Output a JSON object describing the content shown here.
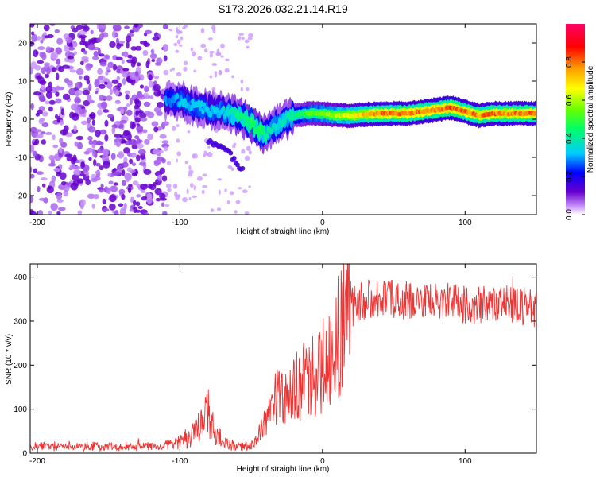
{
  "title": "S173.2026.032.21.14.R19",
  "colors": {
    "noise": "#8a2be2",
    "signal_line": "#ee3333",
    "colorbar": [
      "#cc99ff",
      "#6600cc",
      "#0000ff",
      "#00ccff",
      "#00ff66",
      "#66ff00",
      "#ffff00",
      "#ff9900",
      "#ff0000",
      "#ff0066"
    ]
  },
  "chart_data": [
    {
      "type": "heatmap",
      "name": "spectrogram",
      "xlabel": "Height of straight line (km)",
      "ylabel": "Frequency (Hz)",
      "xlim": [
        -205,
        150
      ],
      "ylim": [
        -25,
        25
      ],
      "xticks": [
        -200,
        -100,
        0,
        100
      ],
      "yticks": [
        -20,
        -10,
        0,
        10,
        20
      ],
      "ridge": {
        "x": [
          -110,
          -100,
          -90,
          -80,
          -70,
          -60,
          -50,
          -45,
          -40,
          -35,
          -30,
          -20,
          -10,
          0,
          10,
          20,
          40,
          60,
          80,
          90,
          100,
          110,
          120,
          150
        ],
        "freq": [
          5,
          5,
          3.5,
          2.5,
          2,
          1,
          -1,
          -3,
          -4,
          -2,
          -1,
          1,
          1.5,
          1.5,
          1,
          1,
          1.5,
          1.5,
          2.5,
          3,
          2,
          1,
          1.5,
          1.5
        ],
        "amplitude": [
          0.3,
          0.35,
          0.35,
          0.35,
          0.35,
          0.45,
          0.5,
          0.5,
          0.45,
          0.4,
          0.4,
          0.45,
          0.55,
          0.6,
          0.65,
          0.7,
          0.85,
          0.85,
          0.85,
          0.9,
          0.85,
          0.85,
          0.85,
          0.85
        ]
      },
      "secondary_branch": {
        "x": [
          -80,
          -75,
          -70,
          -65,
          -60,
          -55
        ],
        "freq": [
          -6,
          -7,
          -8,
          -9,
          -12,
          -14
        ]
      },
      "colorbar": {
        "label": "Normalized spectral amplitude",
        "range": [
          0,
          1
        ],
        "ticks": [
          "0.0",
          "0.2",
          "0.4",
          "0.6",
          "0.8"
        ]
      }
    },
    {
      "type": "line",
      "name": "snr",
      "xlabel": "Height of straight line (km)",
      "ylabel": "SNR (10 * v/v)",
      "xlim": [
        -205,
        150
      ],
      "ylim": [
        0,
        430
      ],
      "xticks": [
        -200,
        -100,
        0,
        100
      ],
      "yticks": [
        0,
        100,
        200,
        300,
        400
      ],
      "series": [
        {
          "name": "SNR",
          "x": [
            -205,
            -190,
            -170,
            -150,
            -130,
            -115,
            -105,
            -100,
            -95,
            -90,
            -85,
            -82,
            -80,
            -78,
            -75,
            -70,
            -65,
            -60,
            -55,
            -50,
            -45,
            -40,
            -35,
            -30,
            -25,
            -20,
            -15,
            -10,
            -5,
            0,
            5,
            10,
            15,
            20,
            30,
            40,
            50,
            60,
            70,
            80,
            90,
            100,
            110,
            120,
            130,
            140,
            150
          ],
          "y": [
            15,
            15,
            15,
            15,
            15,
            15,
            20,
            25,
            35,
            45,
            60,
            80,
            140,
            70,
            50,
            25,
            20,
            15,
            15,
            20,
            40,
            70,
            110,
            130,
            140,
            150,
            160,
            170,
            180,
            200,
            240,
            260,
            300,
            330,
            350,
            355,
            350,
            345,
            345,
            340,
            345,
            340,
            335,
            335,
            340,
            335,
            330
          ]
        }
      ]
    }
  ]
}
